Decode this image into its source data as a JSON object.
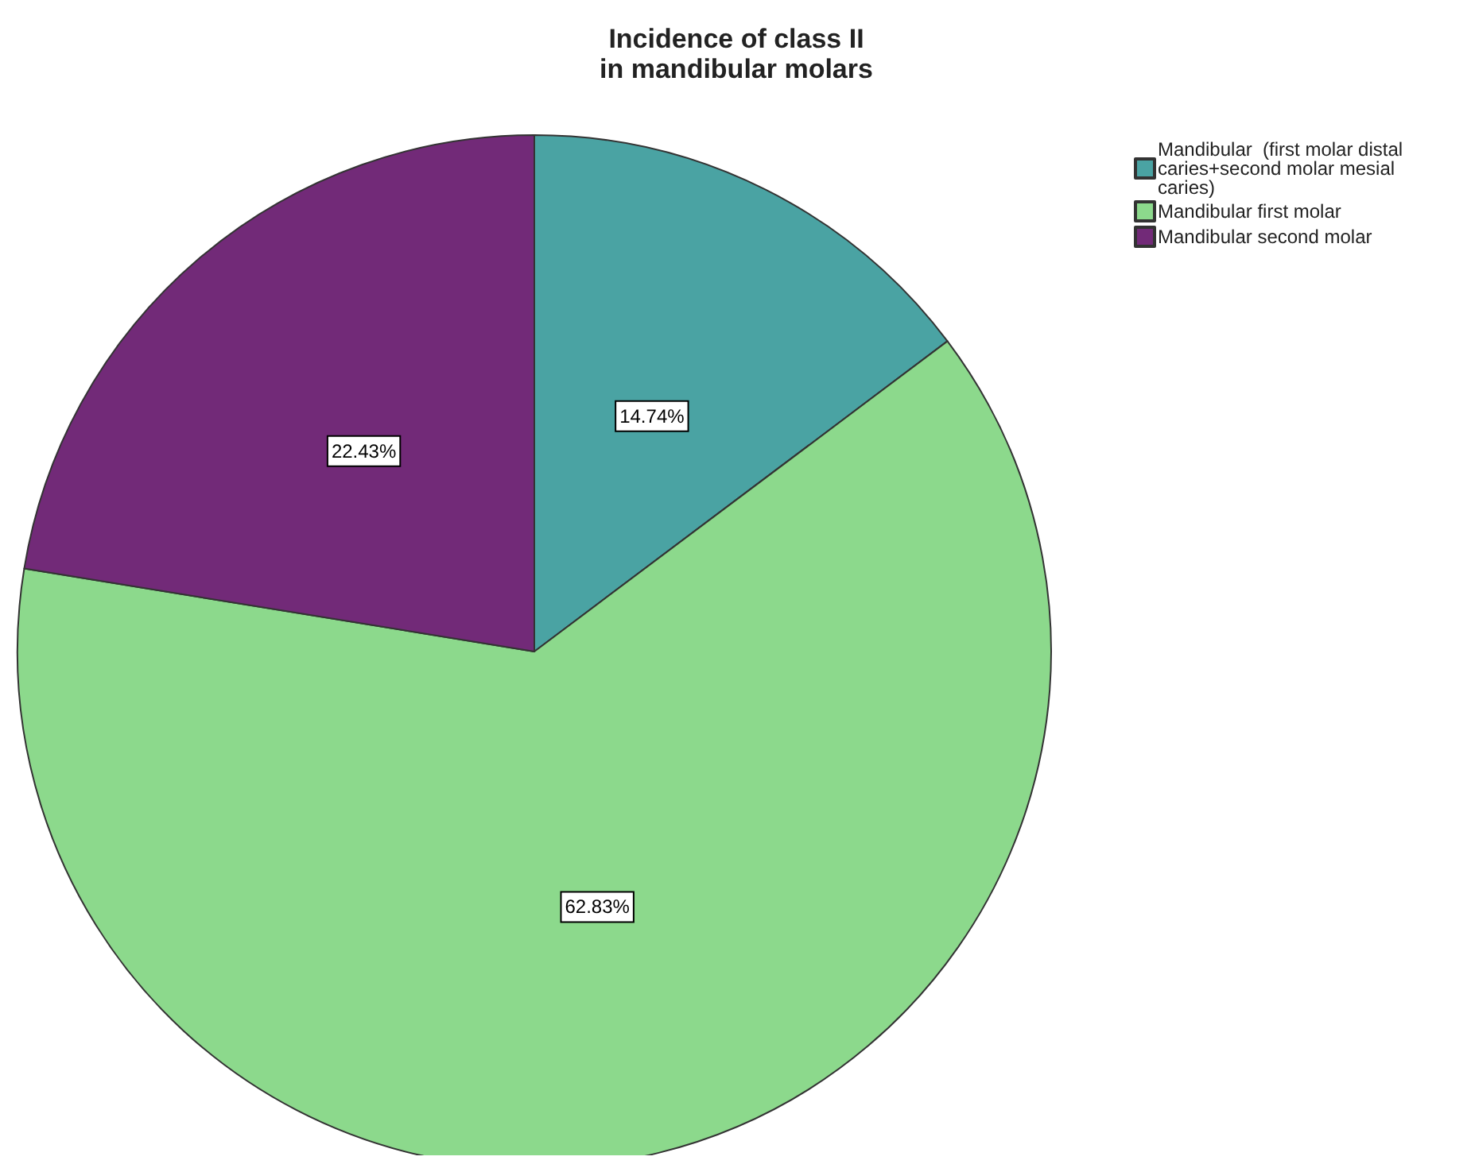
{
  "chart_data": {
    "type": "pie",
    "title": "Incidence of class II\nin mandibular molars",
    "categories": [
      "Mandibular  (first molar distal caries+second molar mesial caries)",
      "Mandibular first molar",
      "Mandibular second molar"
    ],
    "values": [
      14.74,
      62.83,
      22.43
    ],
    "colors": [
      "#4aa3a3",
      "#8cd98c",
      "#722a78"
    ],
    "value_labels": [
      "14.74%",
      "62.83%",
      "22.43%"
    ],
    "legend": "top right"
  }
}
